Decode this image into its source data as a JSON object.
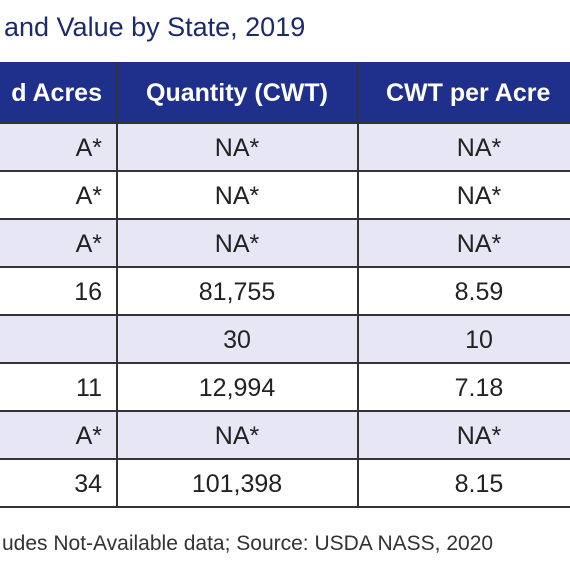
{
  "title": "and Value by State, 2019",
  "table": {
    "headers": [
      "d Acres",
      "Quantity (CWT)",
      "CWT per Acre"
    ],
    "rows": [
      [
        "A*",
        "NA*",
        "NA*"
      ],
      [
        "A*",
        "NA*",
        "NA*"
      ],
      [
        "A*",
        "NA*",
        "NA*"
      ],
      [
        "16",
        "81,755",
        "8.59"
      ],
      [
        null,
        "30",
        "10"
      ],
      [
        "11",
        "12,994",
        "7.18"
      ],
      [
        "A*",
        "NA*",
        "NA*"
      ],
      [
        "34",
        "101,398",
        "8.15"
      ]
    ]
  },
  "footnote": "udes Not-Available data;  Source: USDA NASS, 2020"
}
